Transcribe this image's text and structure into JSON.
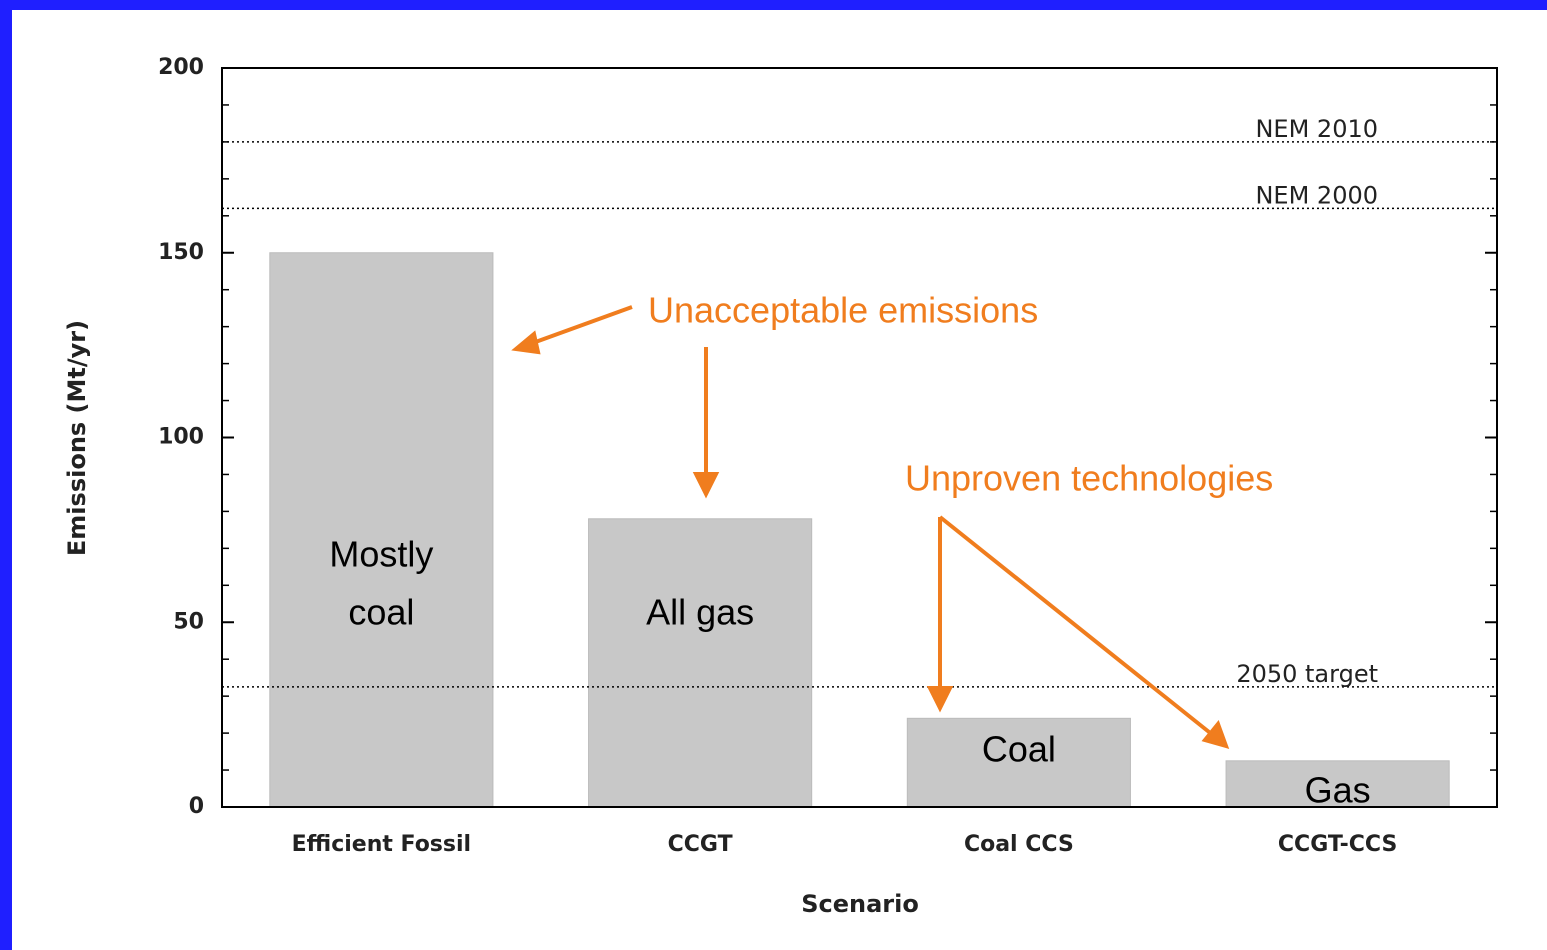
{
  "chart_data": {
    "type": "bar",
    "x_label": "Scenario",
    "y_label": "Emissions (Mt/yr)",
    "categories": [
      "Efficient Fossil",
      "CCGT",
      "Coal CCS",
      "CCGT-CCS"
    ],
    "values": [
      150,
      78,
      24,
      12.5
    ],
    "color": "#c8c8c8",
    "ylim": [
      0,
      200
    ],
    "yticks": [
      0,
      50,
      100,
      150,
      200
    ],
    "minor_yticks": [
      10,
      20,
      30,
      40,
      60,
      70,
      80,
      90,
      110,
      120,
      130,
      140,
      160,
      170,
      180,
      190
    ],
    "reference_lines": [
      {
        "value": 180,
        "label": "NEM 2010"
      },
      {
        "value": 162,
        "label": "NEM 2000"
      },
      {
        "value": 32.5,
        "label": "2050 target"
      }
    ],
    "bar_labels": [
      [
        "Mostly",
        "coal"
      ],
      [
        "All gas"
      ],
      [
        "Coal"
      ],
      [
        "Gas"
      ]
    ],
    "annotations": [
      "Unacceptable emissions",
      "Unproven technologies"
    ]
  }
}
